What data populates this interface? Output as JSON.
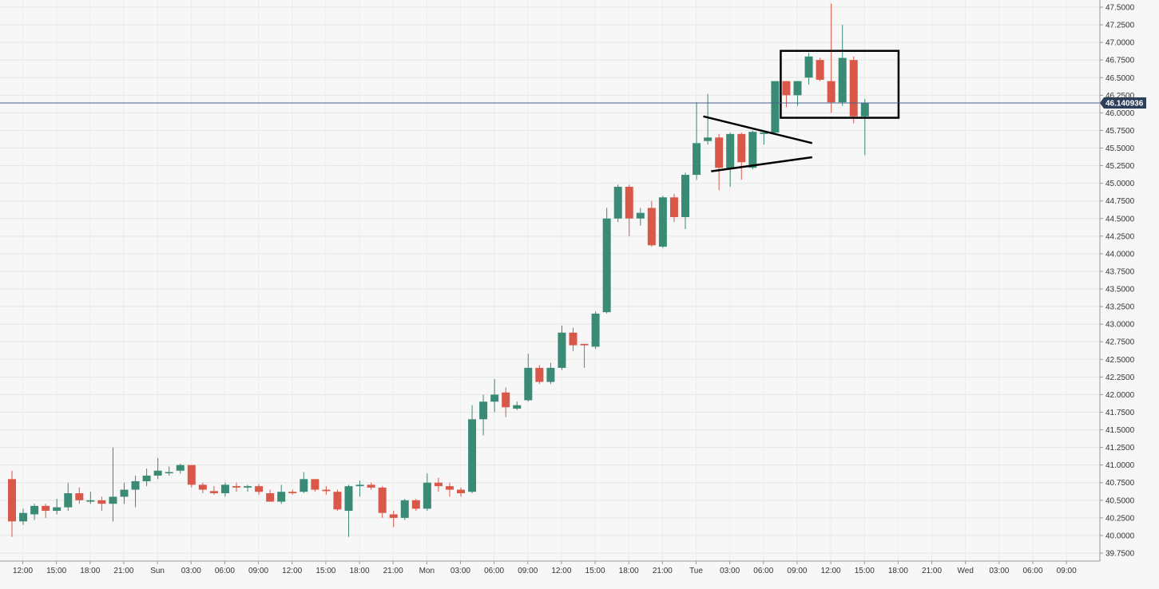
{
  "chart_data": {
    "type": "candlestick",
    "title": "",
    "xlabel": "",
    "ylabel": "",
    "ylim": [
      39.7,
      47.55
    ],
    "grid": true,
    "current_price": 46.140936,
    "current_price_label": "46.140936",
    "y_ticks": [
      "47.5000",
      "47.2500",
      "47.0000",
      "46.7500",
      "46.5000",
      "46.2500",
      "46.0000",
      "45.7500",
      "45.5000",
      "45.2500",
      "45.0000",
      "44.7500",
      "44.5000",
      "44.2500",
      "44.0000",
      "43.7500",
      "43.5000",
      "43.2500",
      "43.0000",
      "42.7500",
      "42.5000",
      "42.2500",
      "42.0000",
      "41.7500",
      "41.5000",
      "41.2500",
      "41.0000",
      "40.7500",
      "40.5000",
      "40.2500",
      "40.0000",
      "39.7500"
    ],
    "x_ticks": [
      "12:00",
      "15:00",
      "18:00",
      "21:00",
      "Sun",
      "03:00",
      "06:00",
      "09:00",
      "12:00",
      "15:00",
      "18:00",
      "21:00",
      "Mon",
      "03:00",
      "06:00",
      "09:00",
      "12:00",
      "15:00",
      "18:00",
      "21:00",
      "Tue",
      "03:00",
      "06:00",
      "09:00",
      "12:00",
      "15:00",
      "18:00",
      "21:00",
      "Wed",
      "03:00",
      "06:00",
      "09:00"
    ],
    "colors": {
      "up": "#3a8b75",
      "down": "#d9584a",
      "price_line": "#4a5f8c",
      "price_label_bg": "#2e3f5c"
    },
    "candles": [
      {
        "o": 40.8,
        "h": 40.92,
        "l": 39.98,
        "c": 40.2
      },
      {
        "o": 40.2,
        "h": 40.38,
        "l": 40.15,
        "c": 40.32
      },
      {
        "o": 40.3,
        "h": 40.45,
        "l": 40.22,
        "c": 40.42
      },
      {
        "o": 40.42,
        "h": 40.45,
        "l": 40.25,
        "c": 40.35
      },
      {
        "o": 40.35,
        "h": 40.52,
        "l": 40.3,
        "c": 40.4
      },
      {
        "o": 40.4,
        "h": 40.75,
        "l": 40.35,
        "c": 40.6
      },
      {
        "o": 40.6,
        "h": 40.68,
        "l": 40.45,
        "c": 40.5
      },
      {
        "o": 40.48,
        "h": 40.62,
        "l": 40.45,
        "c": 40.5
      },
      {
        "o": 40.5,
        "h": 40.55,
        "l": 40.35,
        "c": 40.45
      },
      {
        "o": 40.45,
        "h": 41.25,
        "l": 40.2,
        "c": 40.55
      },
      {
        "o": 40.55,
        "h": 40.75,
        "l": 40.45,
        "c": 40.65
      },
      {
        "o": 40.65,
        "h": 40.85,
        "l": 40.4,
        "c": 40.77
      },
      {
        "o": 40.77,
        "h": 40.95,
        "l": 40.7,
        "c": 40.85
      },
      {
        "o": 40.85,
        "h": 41.1,
        "l": 40.8,
        "c": 40.92
      },
      {
        "o": 40.9,
        "h": 40.98,
        "l": 40.85,
        "c": 40.9
      },
      {
        "o": 40.92,
        "h": 41.02,
        "l": 40.88,
        "c": 41.0
      },
      {
        "o": 41.0,
        "h": 41.0,
        "l": 40.68,
        "c": 40.72
      },
      {
        "o": 40.72,
        "h": 40.75,
        "l": 40.6,
        "c": 40.65
      },
      {
        "o": 40.63,
        "h": 40.7,
        "l": 40.58,
        "c": 40.6
      },
      {
        "o": 40.6,
        "h": 40.75,
        "l": 40.55,
        "c": 40.72
      },
      {
        "o": 40.7,
        "h": 40.75,
        "l": 40.62,
        "c": 40.68
      },
      {
        "o": 40.68,
        "h": 40.72,
        "l": 40.62,
        "c": 40.7
      },
      {
        "o": 40.7,
        "h": 40.73,
        "l": 40.58,
        "c": 40.62
      },
      {
        "o": 40.6,
        "h": 40.65,
        "l": 40.5,
        "c": 40.48
      },
      {
        "o": 40.48,
        "h": 40.72,
        "l": 40.45,
        "c": 40.62
      },
      {
        "o": 40.62,
        "h": 40.65,
        "l": 40.58,
        "c": 40.6
      },
      {
        "o": 40.62,
        "h": 40.9,
        "l": 40.6,
        "c": 40.8
      },
      {
        "o": 40.8,
        "h": 40.8,
        "l": 40.62,
        "c": 40.65
      },
      {
        "o": 40.65,
        "h": 40.7,
        "l": 40.58,
        "c": 40.63
      },
      {
        "o": 40.62,
        "h": 40.65,
        "l": 40.35,
        "c": 40.37
      },
      {
        "o": 40.35,
        "h": 40.72,
        "l": 39.98,
        "c": 40.7
      },
      {
        "o": 40.7,
        "h": 40.78,
        "l": 40.55,
        "c": 40.72
      },
      {
        "o": 40.72,
        "h": 40.75,
        "l": 40.65,
        "c": 40.68
      },
      {
        "o": 40.68,
        "h": 40.7,
        "l": 40.25,
        "c": 40.32
      },
      {
        "o": 40.3,
        "h": 40.35,
        "l": 40.12,
        "c": 40.25
      },
      {
        "o": 40.25,
        "h": 40.52,
        "l": 40.22,
        "c": 40.5
      },
      {
        "o": 40.5,
        "h": 40.52,
        "l": 40.35,
        "c": 40.38
      },
      {
        "o": 40.38,
        "h": 40.88,
        "l": 40.35,
        "c": 40.75
      },
      {
        "o": 40.75,
        "h": 40.82,
        "l": 40.62,
        "c": 40.7
      },
      {
        "o": 40.7,
        "h": 40.75,
        "l": 40.55,
        "c": 40.65
      },
      {
        "o": 40.65,
        "h": 40.68,
        "l": 40.55,
        "c": 40.6
      },
      {
        "o": 40.62,
        "h": 41.85,
        "l": 40.6,
        "c": 41.65
      },
      {
        "o": 41.65,
        "h": 42.0,
        "l": 41.42,
        "c": 41.9
      },
      {
        "o": 41.9,
        "h": 42.22,
        "l": 41.75,
        "c": 42.0
      },
      {
        "o": 42.03,
        "h": 42.1,
        "l": 41.68,
        "c": 41.82
      },
      {
        "o": 41.8,
        "h": 41.9,
        "l": 41.78,
        "c": 41.85
      },
      {
        "o": 41.92,
        "h": 42.58,
        "l": 41.9,
        "c": 42.38
      },
      {
        "o": 42.38,
        "h": 42.42,
        "l": 42.15,
        "c": 42.18
      },
      {
        "o": 42.18,
        "h": 42.45,
        "l": 42.15,
        "c": 42.38
      },
      {
        "o": 42.38,
        "h": 42.98,
        "l": 42.35,
        "c": 42.88
      },
      {
        "o": 42.88,
        "h": 42.95,
        "l": 42.62,
        "c": 42.7
      },
      {
        "o": 42.72,
        "h": 42.72,
        "l": 42.38,
        "c": 42.7
      },
      {
        "o": 42.68,
        "h": 43.18,
        "l": 42.65,
        "c": 43.15
      },
      {
        "o": 43.17,
        "h": 44.65,
        "l": 43.15,
        "c": 44.5
      },
      {
        "o": 44.5,
        "h": 44.98,
        "l": 44.45,
        "c": 44.95
      },
      {
        "o": 44.95,
        "h": 44.98,
        "l": 44.25,
        "c": 44.5
      },
      {
        "o": 44.5,
        "h": 44.65,
        "l": 44.4,
        "c": 44.58
      },
      {
        "o": 44.65,
        "h": 44.75,
        "l": 44.1,
        "c": 44.12
      },
      {
        "o": 44.1,
        "h": 44.82,
        "l": 44.08,
        "c": 44.8
      },
      {
        "o": 44.8,
        "h": 44.85,
        "l": 44.45,
        "c": 44.52
      },
      {
        "o": 44.52,
        "h": 45.15,
        "l": 44.35,
        "c": 45.12
      },
      {
        "o": 45.12,
        "h": 46.15,
        "l": 45.05,
        "c": 45.57
      },
      {
        "o": 45.6,
        "h": 46.27,
        "l": 45.55,
        "c": 45.65
      },
      {
        "o": 45.65,
        "h": 45.7,
        "l": 44.9,
        "c": 45.22
      },
      {
        "o": 45.2,
        "h": 45.72,
        "l": 44.95,
        "c": 45.7
      },
      {
        "o": 45.7,
        "h": 45.72,
        "l": 45.05,
        "c": 45.3
      },
      {
        "o": 45.22,
        "h": 45.75,
        "l": 45.2,
        "c": 45.73
      },
      {
        "o": 45.7,
        "h": 45.72,
        "l": 45.55,
        "c": 45.72
      },
      {
        "o": 45.72,
        "h": 46.45,
        "l": 45.7,
        "c": 46.45
      },
      {
        "o": 46.45,
        "h": 46.45,
        "l": 46.08,
        "c": 46.25
      },
      {
        "o": 46.25,
        "h": 46.45,
        "l": 46.1,
        "c": 46.45
      },
      {
        "o": 46.5,
        "h": 46.85,
        "l": 46.4,
        "c": 46.8
      },
      {
        "o": 46.75,
        "h": 46.78,
        "l": 46.45,
        "c": 46.47
      },
      {
        "o": 46.45,
        "h": 47.55,
        "l": 46.0,
        "c": 46.15
      },
      {
        "o": 46.15,
        "h": 47.25,
        "l": 46.1,
        "c": 46.78
      },
      {
        "o": 46.75,
        "h": 46.8,
        "l": 45.85,
        "c": 45.95
      },
      {
        "o": 45.95,
        "h": 46.2,
        "l": 45.4,
        "c": 46.14
      }
    ],
    "annotations": [
      {
        "type": "trendline",
        "x1_index": 61.6,
        "y1": 45.95,
        "x2_index": 71.3,
        "y2": 45.57
      },
      {
        "type": "trendline",
        "x1_index": 62.3,
        "y1": 45.17,
        "x2_index": 71.3,
        "y2": 45.37
      },
      {
        "type": "rectangle",
        "x1_index": 68.5,
        "x2_index": 79.0,
        "y_top": 46.88,
        "y_bottom": 45.93
      }
    ]
  }
}
